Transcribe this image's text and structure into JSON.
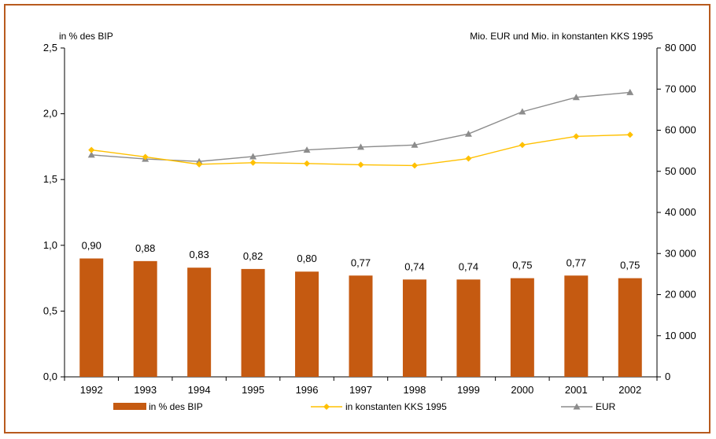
{
  "chart_data": {
    "type": "bar",
    "categories": [
      "1992",
      "1993",
      "1994",
      "1995",
      "1996",
      "1997",
      "1998",
      "1999",
      "2000",
      "2001",
      "2002"
    ],
    "left_axis": {
      "unit_label": "in % des BIP",
      "ylim": [
        0,
        2.5
      ],
      "ticks": [
        "0,0",
        "0,5",
        "1,0",
        "1,5",
        "2,0",
        "2,5"
      ]
    },
    "right_axis": {
      "unit_label": "Mio. EUR und Mio. in konstanten KKS 1995",
      "ylim": [
        0,
        80000
      ],
      "ticks": [
        "0",
        "10 000",
        "20 000",
        "30 000",
        "40 000",
        "50 000",
        "60 000",
        "70 000",
        "80 000"
      ]
    },
    "series": [
      {
        "name": "in % des BIP",
        "kind": "bar",
        "axis": "left",
        "color": "#c55a11",
        "values": [
          0.9,
          0.88,
          0.83,
          0.82,
          0.8,
          0.77,
          0.74,
          0.74,
          0.75,
          0.77,
          0.75
        ],
        "labels": [
          "0,90",
          "0,88",
          "0,83",
          "0,82",
          "0,80",
          "0,77",
          "0,74",
          "0,74",
          "0,75",
          "0,77",
          "0,75"
        ]
      },
      {
        "name": "in konstanten KKS 1995",
        "kind": "line",
        "marker": "diamond",
        "axis": "right",
        "color": "#ffc000",
        "values": [
          55200,
          53500,
          51700,
          52100,
          51900,
          51600,
          51400,
          53100,
          56400,
          58500,
          58900
        ]
      },
      {
        "name": "EUR",
        "kind": "line",
        "marker": "triangle",
        "axis": "right",
        "color": "#8c8c8c",
        "values": [
          54000,
          53000,
          52400,
          53600,
          55200,
          55900,
          56400,
          59100,
          64500,
          68000,
          69200
        ]
      }
    ],
    "grid": false,
    "legend_position": "bottom"
  }
}
